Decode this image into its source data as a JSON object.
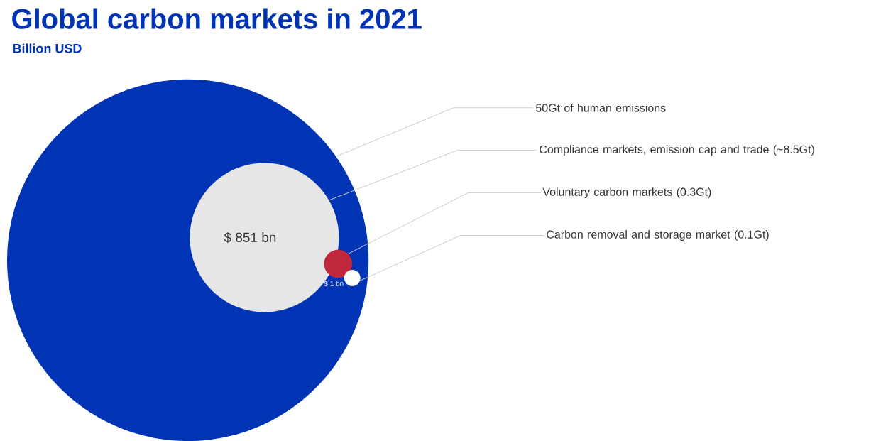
{
  "chart_data": {
    "type": "other",
    "title": "Global carbon markets in 2021",
    "subtitle": "Billion USD",
    "categories": [
      "of human emissions",
      "Compliance markets, emission cap and trade",
      "Voluntary carbon markets",
      "Carbon removal and storage market"
    ],
    "value_labels": [
      "50Gt",
      "(~8.5Gt)",
      "(0.3Gt)",
      "(0.1Gt)"
    ],
    "values": [
      50,
      8.5,
      0.3,
      0.1
    ],
    "annotations": [
      "$ 851 bn",
      "$ 1 bn"
    ],
    "colors": [
      "#0034b5",
      "#e6e6e6",
      "#c0273c",
      "#ffffff"
    ]
  }
}
